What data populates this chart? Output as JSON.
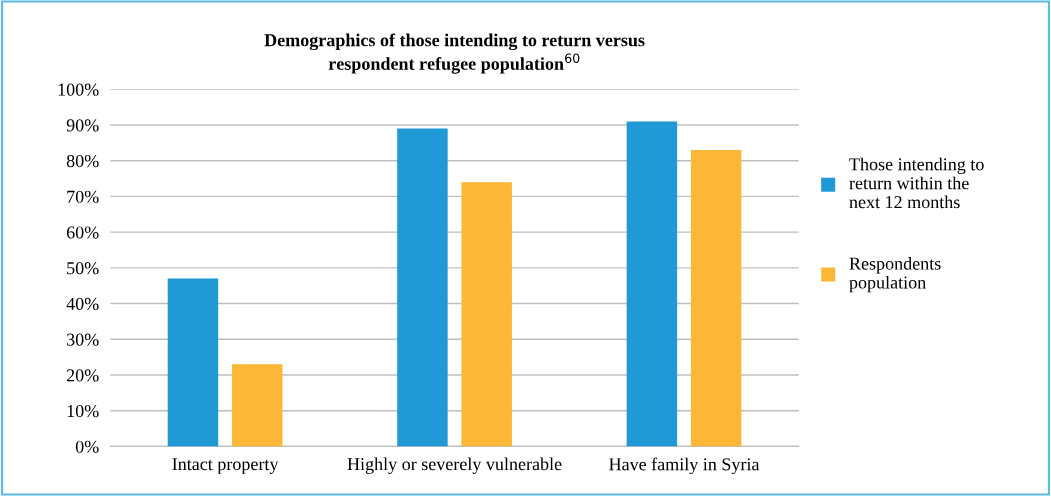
{
  "chart_data": {
    "type": "bar",
    "title": "Demographics of those intending to return versus\nrespondent refugee population$^{60}$",
    "categories": [
      "Intact property",
      "Highly or severely vulnerable",
      "Have family in Syria"
    ],
    "series": [
      {
        "name": "Those intending to\nreturn within the\nnext 12 months",
        "color": "#1f9ad6",
        "values": [
          47,
          89,
          91
        ]
      },
      {
        "name": "Respondents\npopulation",
        "color": "#fbb735",
        "values": [
          23,
          74,
          83
        ]
      }
    ],
    "ylim": [
      0,
      100
    ],
    "yticks": [
      {
        "value": 0,
        "label": "0%"
      },
      {
        "value": 10,
        "label": "10%"
      },
      {
        "value": 20,
        "label": "20%"
      },
      {
        "value": 30,
        "label": "30%"
      },
      {
        "value": 40,
        "label": "40%"
      },
      {
        "value": 50,
        "label": "50%"
      },
      {
        "value": 60,
        "label": "60%"
      },
      {
        "value": 70,
        "label": "70%"
      },
      {
        "value": 80,
        "label": "80%"
      },
      {
        "value": 90,
        "label": "90%"
      },
      {
        "value": 100,
        "label": "100%"
      }
    ],
    "grid": "y",
    "legend": "right"
  }
}
